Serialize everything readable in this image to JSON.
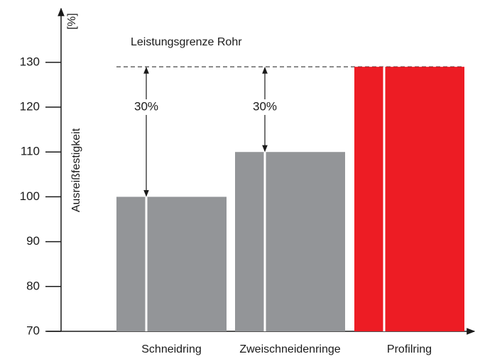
{
  "chart_data": {
    "type": "bar",
    "y_label": "Ausreißfestigkeit",
    "y_unit": "[%]",
    "categories": [
      "Schneidring",
      "Zweischneidenringe",
      "Profilring"
    ],
    "values": [
      100,
      110,
      129
    ],
    "colors": [
      "#939598",
      "#939598",
      "#ed1c24"
    ],
    "ylim": [
      70,
      142
    ],
    "yticks": [
      70,
      80,
      90,
      100,
      110,
      120,
      130
    ],
    "limit": {
      "label": "Leistungsgrenze Rohr",
      "value": 129
    },
    "annotations": [
      "30%",
      "30%"
    ]
  }
}
